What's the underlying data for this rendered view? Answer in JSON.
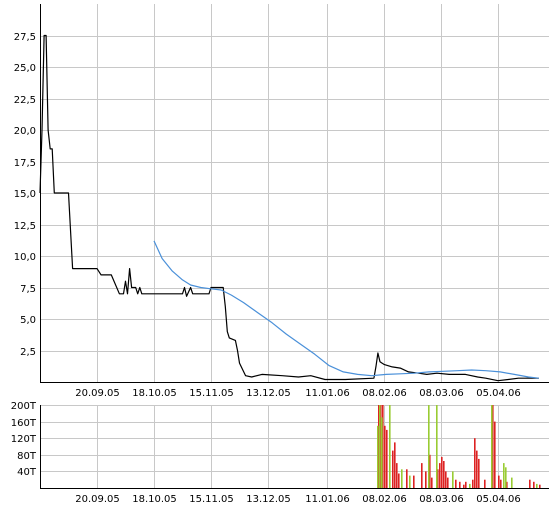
{
  "chart_data": [
    {
      "type": "line",
      "title": "",
      "xlabel": "",
      "ylabel": "",
      "x_tick_labels": [
        "20.09.05",
        "18.10.05",
        "15.11.05",
        "13.12.05",
        "11.01.06",
        "08.02.06",
        "08.03.06",
        "05.04.06"
      ],
      "y_tick_labels": [
        "2,5",
        "5,0",
        "7,5",
        "10,0",
        "12,5",
        "15,0",
        "17,5",
        "20,0",
        "22,5",
        "25,0",
        "27,5"
      ],
      "ylim": [
        0,
        30
      ],
      "grid": true,
      "series": [
        {
          "color": "#000000",
          "points": [
            [
              "2005-08-23",
              15.0
            ],
            [
              "2005-08-24",
              20.0
            ],
            [
              "2005-08-25",
              27.5
            ],
            [
              "2005-08-26",
              27.5
            ],
            [
              "2005-08-27",
              20.0
            ],
            [
              "2005-08-28",
              18.5
            ],
            [
              "2005-08-29",
              18.5
            ],
            [
              "2005-08-30",
              15.0
            ],
            [
              "2005-09-06",
              15.0
            ],
            [
              "2005-09-08",
              9.0
            ],
            [
              "2005-09-20",
              9.0
            ],
            [
              "2005-09-22",
              8.5
            ],
            [
              "2005-09-27",
              8.5
            ],
            [
              "2005-10-01",
              7.0
            ],
            [
              "2005-10-03",
              7.0
            ],
            [
              "2005-10-04",
              8.0
            ],
            [
              "2005-10-05",
              7.0
            ],
            [
              "2005-10-06",
              9.0
            ],
            [
              "2005-10-07",
              7.5
            ],
            [
              "2005-10-09",
              7.5
            ],
            [
              "2005-10-10",
              7.0
            ],
            [
              "2005-10-11",
              7.5
            ],
            [
              "2005-10-12",
              7.0
            ],
            [
              "2005-10-15",
              7.0
            ],
            [
              "2005-10-18",
              7.0
            ],
            [
              "2005-11-01",
              7.0
            ],
            [
              "2005-11-02",
              7.5
            ],
            [
              "2005-11-03",
              6.8
            ],
            [
              "2005-11-05",
              7.5
            ],
            [
              "2005-11-06",
              7.0
            ],
            [
              "2005-11-14",
              7.0
            ],
            [
              "2005-11-15",
              7.5
            ],
            [
              "2005-11-21",
              7.5
            ],
            [
              "2005-11-22",
              6.0
            ],
            [
              "2005-11-23",
              4.0
            ],
            [
              "2005-11-24",
              3.5
            ],
            [
              "2005-11-27",
              3.3
            ],
            [
              "2005-11-28",
              2.5
            ],
            [
              "2005-11-29",
              1.5
            ],
            [
              "2005-12-02",
              0.5
            ],
            [
              "2005-12-05",
              0.4
            ],
            [
              "2005-12-10",
              0.6
            ],
            [
              "2005-12-20",
              0.5
            ],
            [
              "2005-12-28",
              0.4
            ],
            [
              "2006-01-03",
              0.5
            ],
            [
              "2006-01-10",
              0.2
            ],
            [
              "2006-01-20",
              0.2
            ],
            [
              "2006-02-03",
              0.3
            ],
            [
              "2006-02-04",
              1.2
            ],
            [
              "2006-02-05",
              2.3
            ],
            [
              "2006-02-06",
              1.6
            ],
            [
              "2006-02-08",
              1.4
            ],
            [
              "2006-02-12",
              1.2
            ],
            [
              "2006-02-16",
              1.1
            ],
            [
              "2006-02-20",
              0.8
            ],
            [
              "2006-02-25",
              0.7
            ],
            [
              "2006-03-01",
              0.6
            ],
            [
              "2006-03-06",
              0.7
            ],
            [
              "2006-03-12",
              0.6
            ],
            [
              "2006-03-20",
              0.6
            ],
            [
              "2006-03-26",
              0.4
            ],
            [
              "2006-03-30",
              0.3
            ],
            [
              "2006-04-05",
              0.1
            ],
            [
              "2006-04-10",
              0.2
            ],
            [
              "2006-04-15",
              0.3
            ],
            [
              "2006-04-20",
              0.3
            ],
            [
              "2006-04-25",
              0.3
            ]
          ]
        },
        {
          "color": "#4a90d9",
          "points": [
            [
              "2005-10-18",
              11.2
            ],
            [
              "2005-10-22",
              9.8
            ],
            [
              "2005-10-27",
              8.8
            ],
            [
              "2005-11-01",
              8.1
            ],
            [
              "2005-11-05",
              7.7
            ],
            [
              "2005-11-10",
              7.5
            ],
            [
              "2005-11-15",
              7.4
            ],
            [
              "2005-11-20",
              7.3
            ],
            [
              "2005-11-25",
              6.9
            ],
            [
              "2005-12-01",
              6.3
            ],
            [
              "2005-12-08",
              5.5
            ],
            [
              "2005-12-15",
              4.7
            ],
            [
              "2005-12-22",
              3.8
            ],
            [
              "2005-12-29",
              3.0
            ],
            [
              "2006-01-05",
              2.2
            ],
            [
              "2006-01-12",
              1.3
            ],
            [
              "2006-01-19",
              0.8
            ],
            [
              "2006-01-26",
              0.6
            ],
            [
              "2006-02-02",
              0.5
            ],
            [
              "2006-02-09",
              0.6
            ],
            [
              "2006-02-16",
              0.65
            ],
            [
              "2006-02-23",
              0.7
            ],
            [
              "2006-03-02",
              0.8
            ],
            [
              "2006-03-09",
              0.85
            ],
            [
              "2006-03-16",
              0.9
            ],
            [
              "2006-03-23",
              0.95
            ],
            [
              "2006-03-30",
              0.9
            ],
            [
              "2006-04-06",
              0.8
            ],
            [
              "2006-04-13",
              0.6
            ],
            [
              "2006-04-20",
              0.4
            ],
            [
              "2006-04-25",
              0.3
            ]
          ]
        }
      ]
    },
    {
      "type": "bar",
      "title": "",
      "xlabel": "",
      "ylabel": "",
      "x_tick_labels": [
        "20.09.05",
        "18.10.05",
        "15.11.05",
        "13.12.05",
        "11.01.06",
        "08.02.06",
        "08.03.06",
        "05.04.06"
      ],
      "y_tick_labels": [
        "40T",
        "80T",
        "120T",
        "160T",
        "200T"
      ],
      "ylim": [
        0,
        200
      ],
      "grid": true,
      "series": [
        {
          "color": "#dd2222",
          "points": [
            [
              "2006-02-05",
              200
            ],
            [
              "2006-02-06",
              200
            ],
            [
              "2006-02-07",
              200
            ],
            [
              "2006-02-08",
              150
            ],
            [
              "2006-02-09",
              140
            ],
            [
              "2006-02-12",
              90
            ],
            [
              "2006-02-13",
              110
            ],
            [
              "2006-02-14",
              60
            ],
            [
              "2006-02-15",
              35
            ],
            [
              "2006-02-19",
              45
            ],
            [
              "2006-02-22",
              30
            ],
            [
              "2006-02-26",
              60
            ],
            [
              "2006-02-28",
              40
            ],
            [
              "2006-03-02",
              80
            ],
            [
              "2006-03-03",
              25
            ],
            [
              "2006-03-06",
              45
            ],
            [
              "2006-03-07",
              60
            ],
            [
              "2006-03-08",
              75
            ],
            [
              "2006-03-09",
              65
            ],
            [
              "2006-03-10",
              40
            ],
            [
              "2006-03-11",
              25
            ],
            [
              "2006-03-15",
              20
            ],
            [
              "2006-03-17",
              15
            ],
            [
              "2006-03-19",
              8
            ],
            [
              "2006-03-20",
              15
            ],
            [
              "2006-03-23",
              20
            ],
            [
              "2006-03-24",
              120
            ],
            [
              "2006-03-25",
              90
            ],
            [
              "2006-03-26",
              70
            ],
            [
              "2006-03-29",
              20
            ],
            [
              "2006-04-02",
              200
            ],
            [
              "2006-04-03",
              160
            ],
            [
              "2006-04-05",
              30
            ],
            [
              "2006-04-06",
              20
            ],
            [
              "2006-04-09",
              15
            ],
            [
              "2006-04-20",
              20
            ],
            [
              "2006-04-22",
              15
            ],
            [
              "2006-04-25",
              8
            ]
          ]
        },
        {
          "color": "#99cc33",
          "points": [
            [
              "2006-02-04",
              150
            ],
            [
              "2006-02-05",
              200
            ],
            [
              "2006-02-06",
              170
            ],
            [
              "2006-02-10",
              200
            ],
            [
              "2006-02-16",
              45
            ],
            [
              "2006-02-20",
              30
            ],
            [
              "2006-03-01",
              200
            ],
            [
              "2006-03-05",
              200
            ],
            [
              "2006-03-13",
              40
            ],
            [
              "2006-03-21",
              10
            ],
            [
              "2006-04-01",
              200
            ],
            [
              "2006-04-07",
              60
            ],
            [
              "2006-04-08",
              50
            ],
            [
              "2006-04-11",
              25
            ],
            [
              "2006-04-23",
              10
            ]
          ]
        }
      ]
    }
  ]
}
